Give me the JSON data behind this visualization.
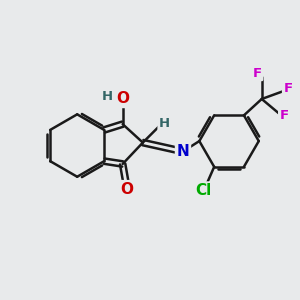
{
  "background_color": "#e8eaeb",
  "bond_color": "#1a1a1a",
  "bond_width": 1.8,
  "atom_colors": {
    "O": "#cc0000",
    "N": "#0000cc",
    "Cl": "#00aa00",
    "F": "#cc00cc",
    "H": "#336666",
    "C": "#1a1a1a"
  },
  "font_size_atom": 11,
  "font_size_small": 9.5
}
